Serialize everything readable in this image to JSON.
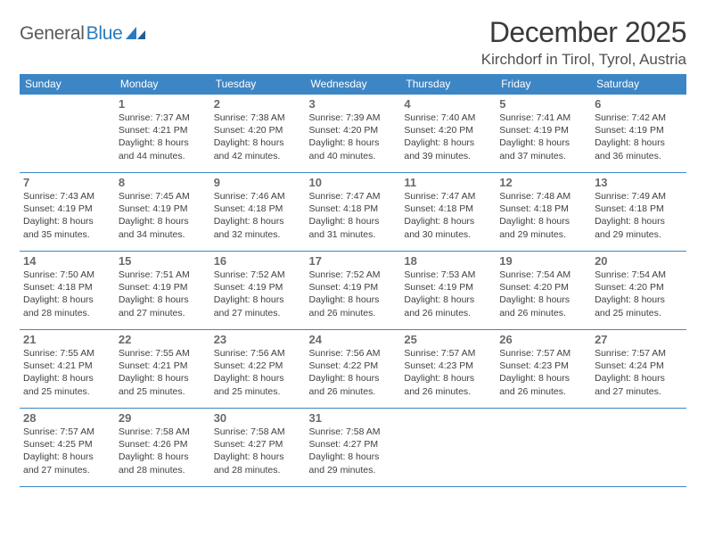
{
  "logo": {
    "part1": "General",
    "part2": "Blue"
  },
  "title": "December 2025",
  "location": "Kirchdorf in Tirol, Tyrol, Austria",
  "colors": {
    "header_bg": "#3d86c6",
    "header_fg": "#ffffff",
    "daynum": "#6a6a6a",
    "text": "#404040",
    "rule": "#3d86c6",
    "logo_gray": "#5a5a5a",
    "logo_blue": "#2a7bbf"
  },
  "day_headers": [
    "Sunday",
    "Monday",
    "Tuesday",
    "Wednesday",
    "Thursday",
    "Friday",
    "Saturday"
  ],
  "weeks": [
    [
      null,
      {
        "n": "1",
        "sr": "7:37 AM",
        "ss": "4:21 PM",
        "dl": "8 hours and 44 minutes."
      },
      {
        "n": "2",
        "sr": "7:38 AM",
        "ss": "4:20 PM",
        "dl": "8 hours and 42 minutes."
      },
      {
        "n": "3",
        "sr": "7:39 AM",
        "ss": "4:20 PM",
        "dl": "8 hours and 40 minutes."
      },
      {
        "n": "4",
        "sr": "7:40 AM",
        "ss": "4:20 PM",
        "dl": "8 hours and 39 minutes."
      },
      {
        "n": "5",
        "sr": "7:41 AM",
        "ss": "4:19 PM",
        "dl": "8 hours and 37 minutes."
      },
      {
        "n": "6",
        "sr": "7:42 AM",
        "ss": "4:19 PM",
        "dl": "8 hours and 36 minutes."
      }
    ],
    [
      {
        "n": "7",
        "sr": "7:43 AM",
        "ss": "4:19 PM",
        "dl": "8 hours and 35 minutes."
      },
      {
        "n": "8",
        "sr": "7:45 AM",
        "ss": "4:19 PM",
        "dl": "8 hours and 34 minutes."
      },
      {
        "n": "9",
        "sr": "7:46 AM",
        "ss": "4:18 PM",
        "dl": "8 hours and 32 minutes."
      },
      {
        "n": "10",
        "sr": "7:47 AM",
        "ss": "4:18 PM",
        "dl": "8 hours and 31 minutes."
      },
      {
        "n": "11",
        "sr": "7:47 AM",
        "ss": "4:18 PM",
        "dl": "8 hours and 30 minutes."
      },
      {
        "n": "12",
        "sr": "7:48 AM",
        "ss": "4:18 PM",
        "dl": "8 hours and 29 minutes."
      },
      {
        "n": "13",
        "sr": "7:49 AM",
        "ss": "4:18 PM",
        "dl": "8 hours and 29 minutes."
      }
    ],
    [
      {
        "n": "14",
        "sr": "7:50 AM",
        "ss": "4:18 PM",
        "dl": "8 hours and 28 minutes."
      },
      {
        "n": "15",
        "sr": "7:51 AM",
        "ss": "4:19 PM",
        "dl": "8 hours and 27 minutes."
      },
      {
        "n": "16",
        "sr": "7:52 AM",
        "ss": "4:19 PM",
        "dl": "8 hours and 27 minutes."
      },
      {
        "n": "17",
        "sr": "7:52 AM",
        "ss": "4:19 PM",
        "dl": "8 hours and 26 minutes."
      },
      {
        "n": "18",
        "sr": "7:53 AM",
        "ss": "4:19 PM",
        "dl": "8 hours and 26 minutes."
      },
      {
        "n": "19",
        "sr": "7:54 AM",
        "ss": "4:20 PM",
        "dl": "8 hours and 26 minutes."
      },
      {
        "n": "20",
        "sr": "7:54 AM",
        "ss": "4:20 PM",
        "dl": "8 hours and 25 minutes."
      }
    ],
    [
      {
        "n": "21",
        "sr": "7:55 AM",
        "ss": "4:21 PM",
        "dl": "8 hours and 25 minutes."
      },
      {
        "n": "22",
        "sr": "7:55 AM",
        "ss": "4:21 PM",
        "dl": "8 hours and 25 minutes."
      },
      {
        "n": "23",
        "sr": "7:56 AM",
        "ss": "4:22 PM",
        "dl": "8 hours and 25 minutes."
      },
      {
        "n": "24",
        "sr": "7:56 AM",
        "ss": "4:22 PM",
        "dl": "8 hours and 26 minutes."
      },
      {
        "n": "25",
        "sr": "7:57 AM",
        "ss": "4:23 PM",
        "dl": "8 hours and 26 minutes."
      },
      {
        "n": "26",
        "sr": "7:57 AM",
        "ss": "4:23 PM",
        "dl": "8 hours and 26 minutes."
      },
      {
        "n": "27",
        "sr": "7:57 AM",
        "ss": "4:24 PM",
        "dl": "8 hours and 27 minutes."
      }
    ],
    [
      {
        "n": "28",
        "sr": "7:57 AM",
        "ss": "4:25 PM",
        "dl": "8 hours and 27 minutes."
      },
      {
        "n": "29",
        "sr": "7:58 AM",
        "ss": "4:26 PM",
        "dl": "8 hours and 28 minutes."
      },
      {
        "n": "30",
        "sr": "7:58 AM",
        "ss": "4:27 PM",
        "dl": "8 hours and 28 minutes."
      },
      {
        "n": "31",
        "sr": "7:58 AM",
        "ss": "4:27 PM",
        "dl": "8 hours and 29 minutes."
      },
      null,
      null,
      null
    ]
  ],
  "labels": {
    "sunrise": "Sunrise:",
    "sunset": "Sunset:",
    "daylight": "Daylight:"
  }
}
